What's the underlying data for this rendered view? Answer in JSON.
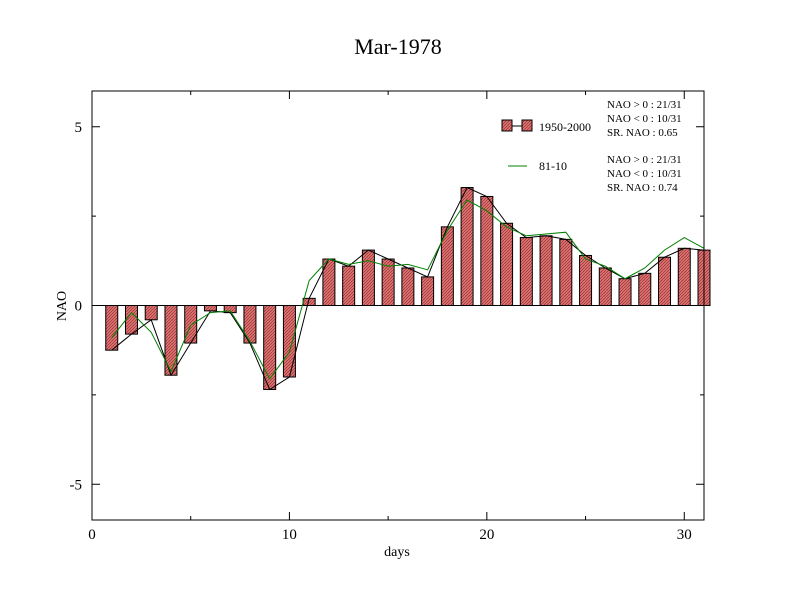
{
  "chart_data": {
    "type": "bar",
    "title": "Mar-1978",
    "xlabel": "days",
    "ylabel": "NAO",
    "xlim": [
      0,
      31
    ],
    "ylim": [
      -6,
      6
    ],
    "xticks": [
      0,
      10,
      20,
      30
    ],
    "yticks": [
      -5,
      0,
      5
    ],
    "x": [
      1,
      2,
      3,
      4,
      5,
      6,
      7,
      8,
      9,
      10,
      11,
      12,
      13,
      14,
      15,
      16,
      17,
      18,
      19,
      20,
      21,
      22,
      23,
      24,
      25,
      26,
      27,
      28,
      29,
      30,
      31
    ],
    "series": [
      {
        "name": "1950-2000",
        "type": "bar",
        "bar_fill": "#e07070",
        "line_color": "#000000",
        "values": [
          -1.25,
          -0.8,
          -0.4,
          -1.95,
          -1.05,
          -0.15,
          -0.2,
          -1.05,
          -2.35,
          -2.0,
          0.2,
          1.3,
          1.1,
          1.55,
          1.3,
          1.05,
          0.8,
          2.2,
          3.3,
          3.05,
          2.3,
          1.9,
          1.95,
          1.85,
          1.4,
          1.05,
          0.75,
          0.9,
          1.35,
          1.6,
          1.55
        ]
      },
      {
        "name": "81-10",
        "type": "line",
        "line_color": "#008000",
        "values": [
          -0.9,
          -0.2,
          -0.75,
          -1.85,
          -0.55,
          -0.2,
          -0.15,
          -1.0,
          -2.05,
          -1.3,
          0.7,
          1.3,
          1.15,
          1.25,
          1.1,
          1.15,
          1.0,
          2.1,
          2.95,
          2.65,
          2.2,
          1.95,
          2.0,
          2.05,
          1.3,
          1.1,
          0.75,
          1.05,
          1.55,
          1.9,
          1.6
        ]
      }
    ],
    "legend_position": "top-right",
    "stats": [
      {
        "lines": [
          "NAO > 0 : 21/31",
          "NAO < 0 : 10/31",
          "SR. NAO :  0.65"
        ]
      },
      {
        "lines": [
          "NAO > 0 : 21/31",
          "NAO < 0 : 10/31",
          "SR. NAO :  0.74"
        ]
      }
    ],
    "grid": false
  }
}
